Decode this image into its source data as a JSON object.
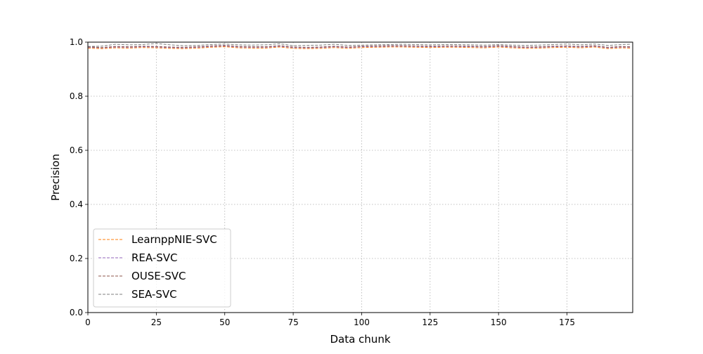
{
  "chart_data": {
    "type": "line",
    "title": "",
    "xlabel": "Data chunk",
    "ylabel": "Precision",
    "xlim": [
      0,
      199
    ],
    "ylim": [
      0.0,
      1.0
    ],
    "grid": true,
    "legend_position": "lower-left",
    "xticks": [
      0,
      25,
      50,
      75,
      100,
      125,
      150,
      175
    ],
    "yticks": [
      0.0,
      0.2,
      0.4,
      0.6,
      0.8,
      1.0
    ],
    "xtick_labels": [
      "0",
      "25",
      "50",
      "75",
      "100",
      "125",
      "150",
      "175"
    ],
    "ytick_labels": [
      "0.0",
      "0.2",
      "0.4",
      "0.6",
      "0.8",
      "1.0"
    ],
    "x": [
      0,
      5,
      10,
      15,
      20,
      25,
      30,
      35,
      40,
      45,
      50,
      55,
      60,
      65,
      70,
      75,
      80,
      85,
      90,
      95,
      100,
      105,
      110,
      115,
      120,
      125,
      130,
      135,
      140,
      145,
      150,
      155,
      160,
      165,
      170,
      175,
      180,
      185,
      190,
      195,
      198
    ],
    "series": [
      {
        "name": "LearnppNIE-SVC",
        "color": "#ff7f0e",
        "values": [
          0.978,
          0.976,
          0.979,
          0.978,
          0.98,
          0.979,
          0.977,
          0.976,
          0.978,
          0.981,
          0.983,
          0.979,
          0.978,
          0.978,
          0.982,
          0.977,
          0.976,
          0.977,
          0.98,
          0.977,
          0.98,
          0.981,
          0.982,
          0.982,
          0.981,
          0.98,
          0.981,
          0.981,
          0.98,
          0.979,
          0.982,
          0.979,
          0.977,
          0.978,
          0.98,
          0.981,
          0.979,
          0.982,
          0.976,
          0.979,
          0.978
        ]
      },
      {
        "name": "REA-SVC",
        "color": "#9467bd",
        "values": [
          0.981,
          0.979,
          0.982,
          0.981,
          0.983,
          0.982,
          0.98,
          0.979,
          0.981,
          0.984,
          0.986,
          0.982,
          0.981,
          0.981,
          0.985,
          0.98,
          0.979,
          0.98,
          0.983,
          0.98,
          0.983,
          0.984,
          0.985,
          0.985,
          0.984,
          0.983,
          0.984,
          0.984,
          0.983,
          0.982,
          0.985,
          0.982,
          0.98,
          0.981,
          0.983,
          0.984,
          0.982,
          0.985,
          0.979,
          0.982,
          0.981
        ]
      },
      {
        "name": "OUSE-SVC",
        "color": "#8c564b",
        "values": [
          0.983,
          0.98,
          0.984,
          0.983,
          0.985,
          0.984,
          0.982,
          0.981,
          0.983,
          0.986,
          0.988,
          0.984,
          0.983,
          0.983,
          0.987,
          0.982,
          0.981,
          0.982,
          0.985,
          0.982,
          0.985,
          0.986,
          0.987,
          0.987,
          0.986,
          0.985,
          0.986,
          0.986,
          0.985,
          0.984,
          0.987,
          0.984,
          0.982,
          0.983,
          0.985,
          0.986,
          0.984,
          0.987,
          0.981,
          0.984,
          0.983
        ]
      },
      {
        "name": "SEA-SVC",
        "color": "#7f7f7f",
        "values": [
          0.984,
          0.985,
          0.992,
          0.99,
          0.991,
          0.995,
          0.99,
          0.987,
          0.988,
          0.991,
          0.993,
          0.99,
          0.989,
          0.99,
          0.994,
          0.987,
          0.988,
          0.989,
          0.992,
          0.988,
          0.989,
          0.99,
          0.991,
          0.992,
          0.991,
          0.99,
          0.991,
          0.991,
          0.99,
          0.989,
          0.991,
          0.989,
          0.988,
          0.989,
          0.991,
          0.993,
          0.99,
          0.993,
          0.988,
          0.991,
          0.992
        ]
      }
    ]
  }
}
